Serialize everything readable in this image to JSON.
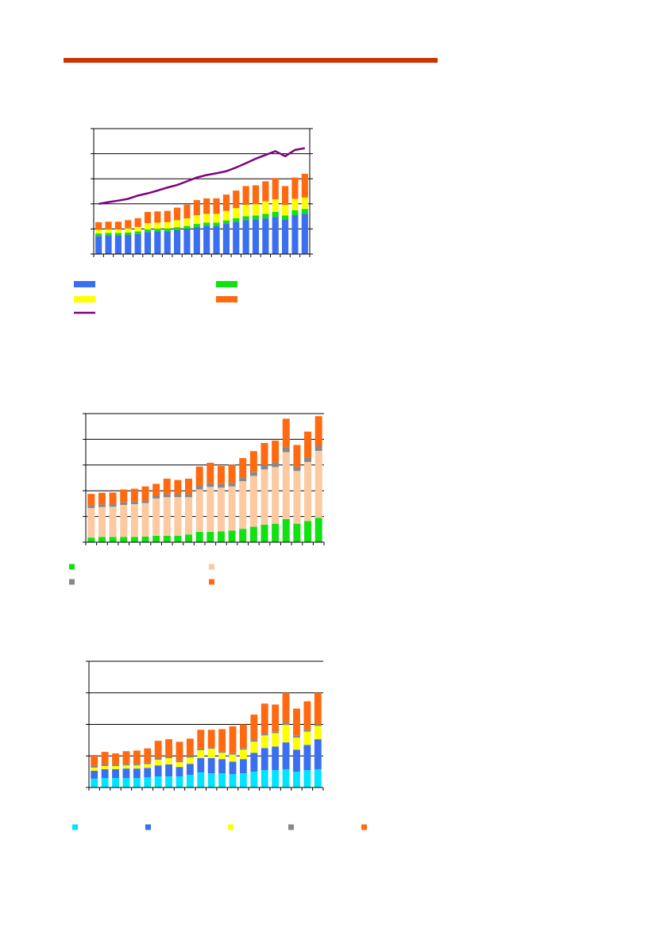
{
  "chart_data": [
    {
      "type": "bar",
      "stacked": true,
      "grid": true,
      "ylim": [
        0,
        5
      ],
      "yticks": [
        0,
        1,
        2,
        3,
        4,
        5
      ],
      "series": [
        {
          "color": "#3a6ff0",
          "values": [
            0.72,
            0.74,
            0.74,
            0.76,
            0.8,
            0.88,
            0.9,
            0.9,
            0.95,
            1.0,
            1.08,
            1.12,
            1.12,
            1.2,
            1.28,
            1.35,
            1.38,
            1.42,
            1.48,
            1.38,
            1.55,
            1.6
          ]
        },
        {
          "color": "#11e011",
          "values": [
            0.1,
            0.1,
            0.1,
            0.1,
            0.1,
            0.1,
            0.1,
            0.12,
            0.12,
            0.12,
            0.12,
            0.13,
            0.13,
            0.14,
            0.15,
            0.16,
            0.16,
            0.18,
            0.2,
            0.16,
            0.2,
            0.2
          ]
        },
        {
          "color": "#ffff00",
          "values": [
            0.15,
            0.15,
            0.15,
            0.16,
            0.18,
            0.25,
            0.25,
            0.25,
            0.28,
            0.3,
            0.35,
            0.35,
            0.35,
            0.38,
            0.4,
            0.45,
            0.45,
            0.5,
            0.5,
            0.42,
            0.45,
            0.45
          ]
        },
        {
          "color": "#ff6a10",
          "values": [
            0.3,
            0.3,
            0.3,
            0.33,
            0.35,
            0.45,
            0.45,
            0.45,
            0.5,
            0.55,
            0.6,
            0.62,
            0.62,
            0.65,
            0.7,
            0.75,
            0.75,
            0.8,
            0.85,
            0.75,
            0.85,
            0.95
          ]
        },
        {
          "type": "line",
          "color": "#800080",
          "values": [
            2.0,
            2.07,
            2.13,
            2.2,
            2.33,
            2.42,
            2.53,
            2.65,
            2.75,
            2.9,
            3.05,
            3.15,
            3.22,
            3.3,
            3.45,
            3.62,
            3.8,
            3.95,
            4.1,
            3.9,
            4.15,
            4.22
          ]
        }
      ]
    },
    {
      "type": "bar",
      "stacked": true,
      "grid": true,
      "ylim": [
        0,
        5
      ],
      "yticks": [
        0,
        1,
        2,
        3,
        4,
        5
      ],
      "series": [
        {
          "color": "#11e011",
          "values": [
            0.18,
            0.2,
            0.2,
            0.2,
            0.2,
            0.22,
            0.25,
            0.25,
            0.25,
            0.3,
            0.4,
            0.4,
            0.42,
            0.45,
            0.52,
            0.6,
            0.68,
            0.72,
            0.9,
            0.72,
            0.82,
            0.95
          ]
        },
        {
          "color": "#fcc9a0",
          "values": [
            1.15,
            1.17,
            1.18,
            1.25,
            1.28,
            1.3,
            1.45,
            1.5,
            1.5,
            1.45,
            1.65,
            1.75,
            1.7,
            1.72,
            1.85,
            1.98,
            2.15,
            2.2,
            2.6,
            2.05,
            2.3,
            2.6
          ]
        },
        {
          "color": "#888888",
          "values": [
            0.1,
            0.1,
            0.1,
            0.1,
            0.1,
            0.1,
            0.12,
            0.12,
            0.12,
            0.12,
            0.14,
            0.14,
            0.14,
            0.14,
            0.15,
            0.16,
            0.18,
            0.18,
            0.2,
            0.16,
            0.18,
            0.2
          ]
        },
        {
          "color": "#ff6a10",
          "values": [
            0.45,
            0.45,
            0.45,
            0.5,
            0.5,
            0.55,
            0.45,
            0.6,
            0.55,
            0.6,
            0.75,
            0.8,
            0.7,
            0.7,
            0.75,
            0.8,
            0.85,
            0.85,
            1.1,
            0.85,
            1.0,
            1.15
          ]
        }
      ]
    },
    {
      "type": "bar",
      "stacked": true,
      "grid": true,
      "ylim": [
        0,
        4
      ],
      "yticks": [
        0,
        1,
        2,
        3,
        4
      ],
      "series": [
        {
          "color": "#00e5ff",
          "values": [
            0.28,
            0.3,
            0.3,
            0.3,
            0.3,
            0.32,
            0.35,
            0.35,
            0.35,
            0.4,
            0.48,
            0.45,
            0.45,
            0.42,
            0.45,
            0.5,
            0.55,
            0.55,
            0.58,
            0.5,
            0.55,
            0.58
          ]
        },
        {
          "color": "#3a6ff0",
          "values": [
            0.25,
            0.28,
            0.28,
            0.3,
            0.3,
            0.3,
            0.35,
            0.38,
            0.3,
            0.35,
            0.45,
            0.48,
            0.45,
            0.4,
            0.45,
            0.6,
            0.7,
            0.75,
            0.85,
            0.7,
            0.8,
            0.95
          ]
        },
        {
          "color": "#ffff00",
          "values": [
            0.1,
            0.1,
            0.1,
            0.1,
            0.1,
            0.12,
            0.18,
            0.2,
            0.15,
            0.2,
            0.25,
            0.3,
            0.2,
            0.22,
            0.3,
            0.35,
            0.4,
            0.42,
            0.55,
            0.38,
            0.42,
            0.42
          ]
        },
        {
          "color": "#888888",
          "values": [
            0.05,
            0.05,
            0.05,
            0.05,
            0.05,
            0.05,
            0.05,
            0.05,
            0.05,
            0.05,
            0.05,
            0.05,
            0.05,
            0.05,
            0.05,
            0.06,
            0.06,
            0.06,
            0.08,
            0.06,
            0.06,
            0.06
          ]
        },
        {
          "color": "#ff6a10",
          "values": [
            0.35,
            0.4,
            0.35,
            0.4,
            0.42,
            0.45,
            0.55,
            0.55,
            0.6,
            0.55,
            0.6,
            0.55,
            0.7,
            0.85,
            0.75,
            0.8,
            0.95,
            0.85,
            0.94,
            0.86,
            0.9,
            0.99
          ]
        }
      ]
    }
  ]
}
